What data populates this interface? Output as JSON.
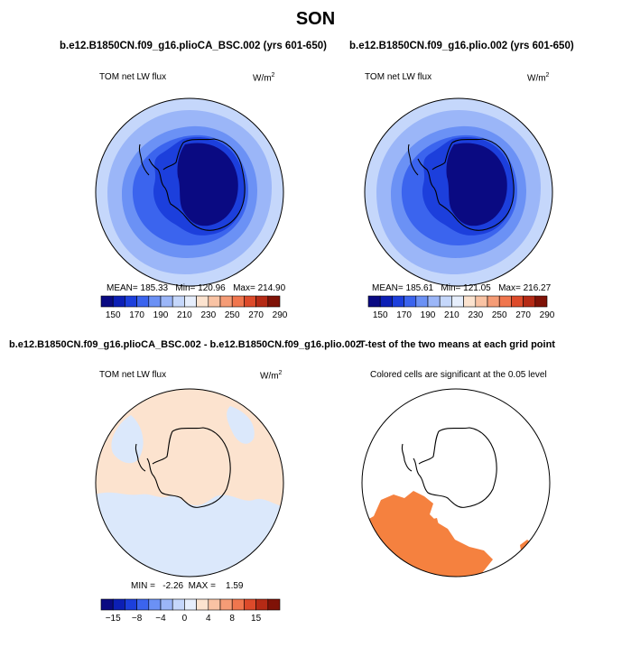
{
  "page": {
    "title": "SON"
  },
  "panels": [
    {
      "title": "b.e12.B1850CN.f09_g16.plioCA_BSC.002 (yrs 601-650)",
      "field_label": "TOM net LW flux",
      "units_label": "W/m",
      "units_exp": "2",
      "stats_text": "MEAN= 185.33   Min= 120.96   Max= 214.90"
    },
    {
      "title": "b.e12.B1850CN.f09_g16.plio.002 (yrs 601-650)",
      "field_label": "TOM net LW flux",
      "units_label": "W/m",
      "units_exp": "2",
      "stats_text": "MEAN= 185.61   Min= 121.05   Max= 216.27"
    },
    {
      "title": "b.e12.B1850CN.f09_g16.plioCA_BSC.002 - b.e12.B1850CN.f09_g16.plio.002",
      "field_label": "TOM net LW flux",
      "units_label": "W/m",
      "units_exp": "2",
      "stats_text": "MIN =   -2.26  MAX =    1.59"
    },
    {
      "title": "T-test of the two means at each grid point",
      "note": "Colored cells are significant at the 0.05 level"
    }
  ],
  "colorbar_abs": {
    "colors": [
      "#0a0a82",
      "#0c1fb5",
      "#1c3fdc",
      "#3b64ee",
      "#6b91f5",
      "#9bb6f8",
      "#c5d7fb",
      "#e6eefc",
      "#fce3cf",
      "#f9c3a4",
      "#f59c76",
      "#f0764e",
      "#dd4a2a",
      "#b52a15",
      "#7f1207"
    ],
    "labels": [
      "150",
      "170",
      "190",
      "210",
      "230",
      "250",
      "270",
      "290"
    ]
  },
  "colorbar_diff": {
    "colors": [
      "#0a0a82",
      "#0c1fb5",
      "#1c3fdc",
      "#3b64ee",
      "#6b91f5",
      "#9bb6f8",
      "#c5d7fb",
      "#e6eefc",
      "#fce3cf",
      "#f9c3a4",
      "#f59c76",
      "#f0764e",
      "#dd4a2a",
      "#b52a15",
      "#7f1207"
    ],
    "labels": [
      "−15",
      "−8",
      "−4",
      "0",
      "4",
      "8",
      "15"
    ]
  },
  "map_colors": {
    "outer": "#c5d7fb",
    "ring2": "#9bb6f8",
    "ring3": "#6b91f5",
    "ring4": "#3b64ee",
    "ring5": "#1c3fdc",
    "core": "#0a0a82",
    "diff_neg": "#dbe8fb",
    "diff_pos": "#fce3cf",
    "signif": "#f5813f"
  }
}
